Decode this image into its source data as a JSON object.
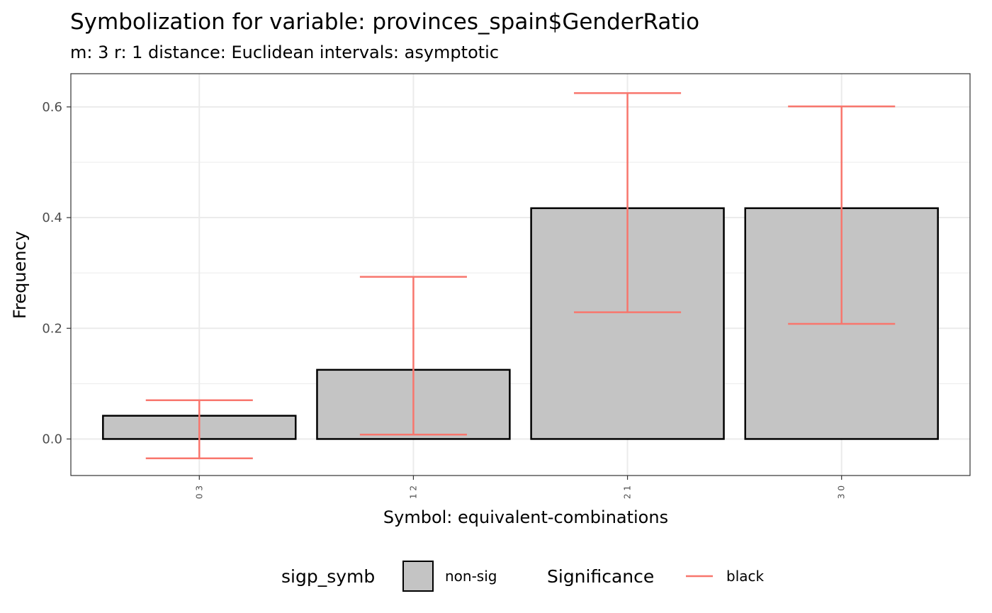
{
  "chart_data": {
    "type": "bar",
    "title": "Symbolization for variable: provinces_spain$GenderRatio",
    "subtitle": "m: 3  r:  1  distance:  Euclidean  intervals:  asymptotic",
    "xlabel": "Symbol: equivalent-combinations",
    "ylabel": "Frequency",
    "categories": [
      "0 3",
      "1 2",
      "2 1",
      "3 0"
    ],
    "values": [
      0.042,
      0.125,
      0.417,
      0.417
    ],
    "error_lower": [
      -0.035,
      0.008,
      0.229,
      0.208
    ],
    "error_upper": [
      0.07,
      0.293,
      0.625,
      0.601
    ],
    "ylim": [
      -0.066,
      0.66
    ],
    "yticks": [
      0.0,
      0.2,
      0.4,
      0.6
    ],
    "ytick_labels": [
      "0.0",
      "0.2",
      "0.4",
      "0.6"
    ],
    "grid": true,
    "bar_fill": "#c4c4c4",
    "bar_stroke": "#000000",
    "errorbar_color": "#f8766d",
    "legend_position": "bottom",
    "legend": [
      {
        "title": "sigp_symb",
        "label": "non-sig",
        "kind": "fill",
        "color": "#c4c4c4"
      },
      {
        "title": "Significance",
        "label": "black",
        "kind": "line",
        "color": "#f8766d"
      }
    ]
  }
}
